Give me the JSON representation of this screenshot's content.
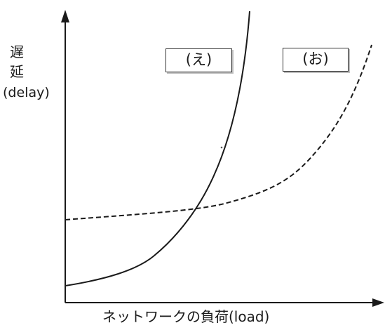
{
  "diagram": {
    "y_axis_label": {
      "char1": "遅",
      "char2": "延",
      "english": "(delay)"
    },
    "x_axis_label": "ネットワークの負荷(load)",
    "curves": [
      {
        "label": "(え)",
        "style": "solid"
      },
      {
        "label": "(お)",
        "style": "dashed"
      }
    ],
    "line_color": "#1a1a1a"
  }
}
